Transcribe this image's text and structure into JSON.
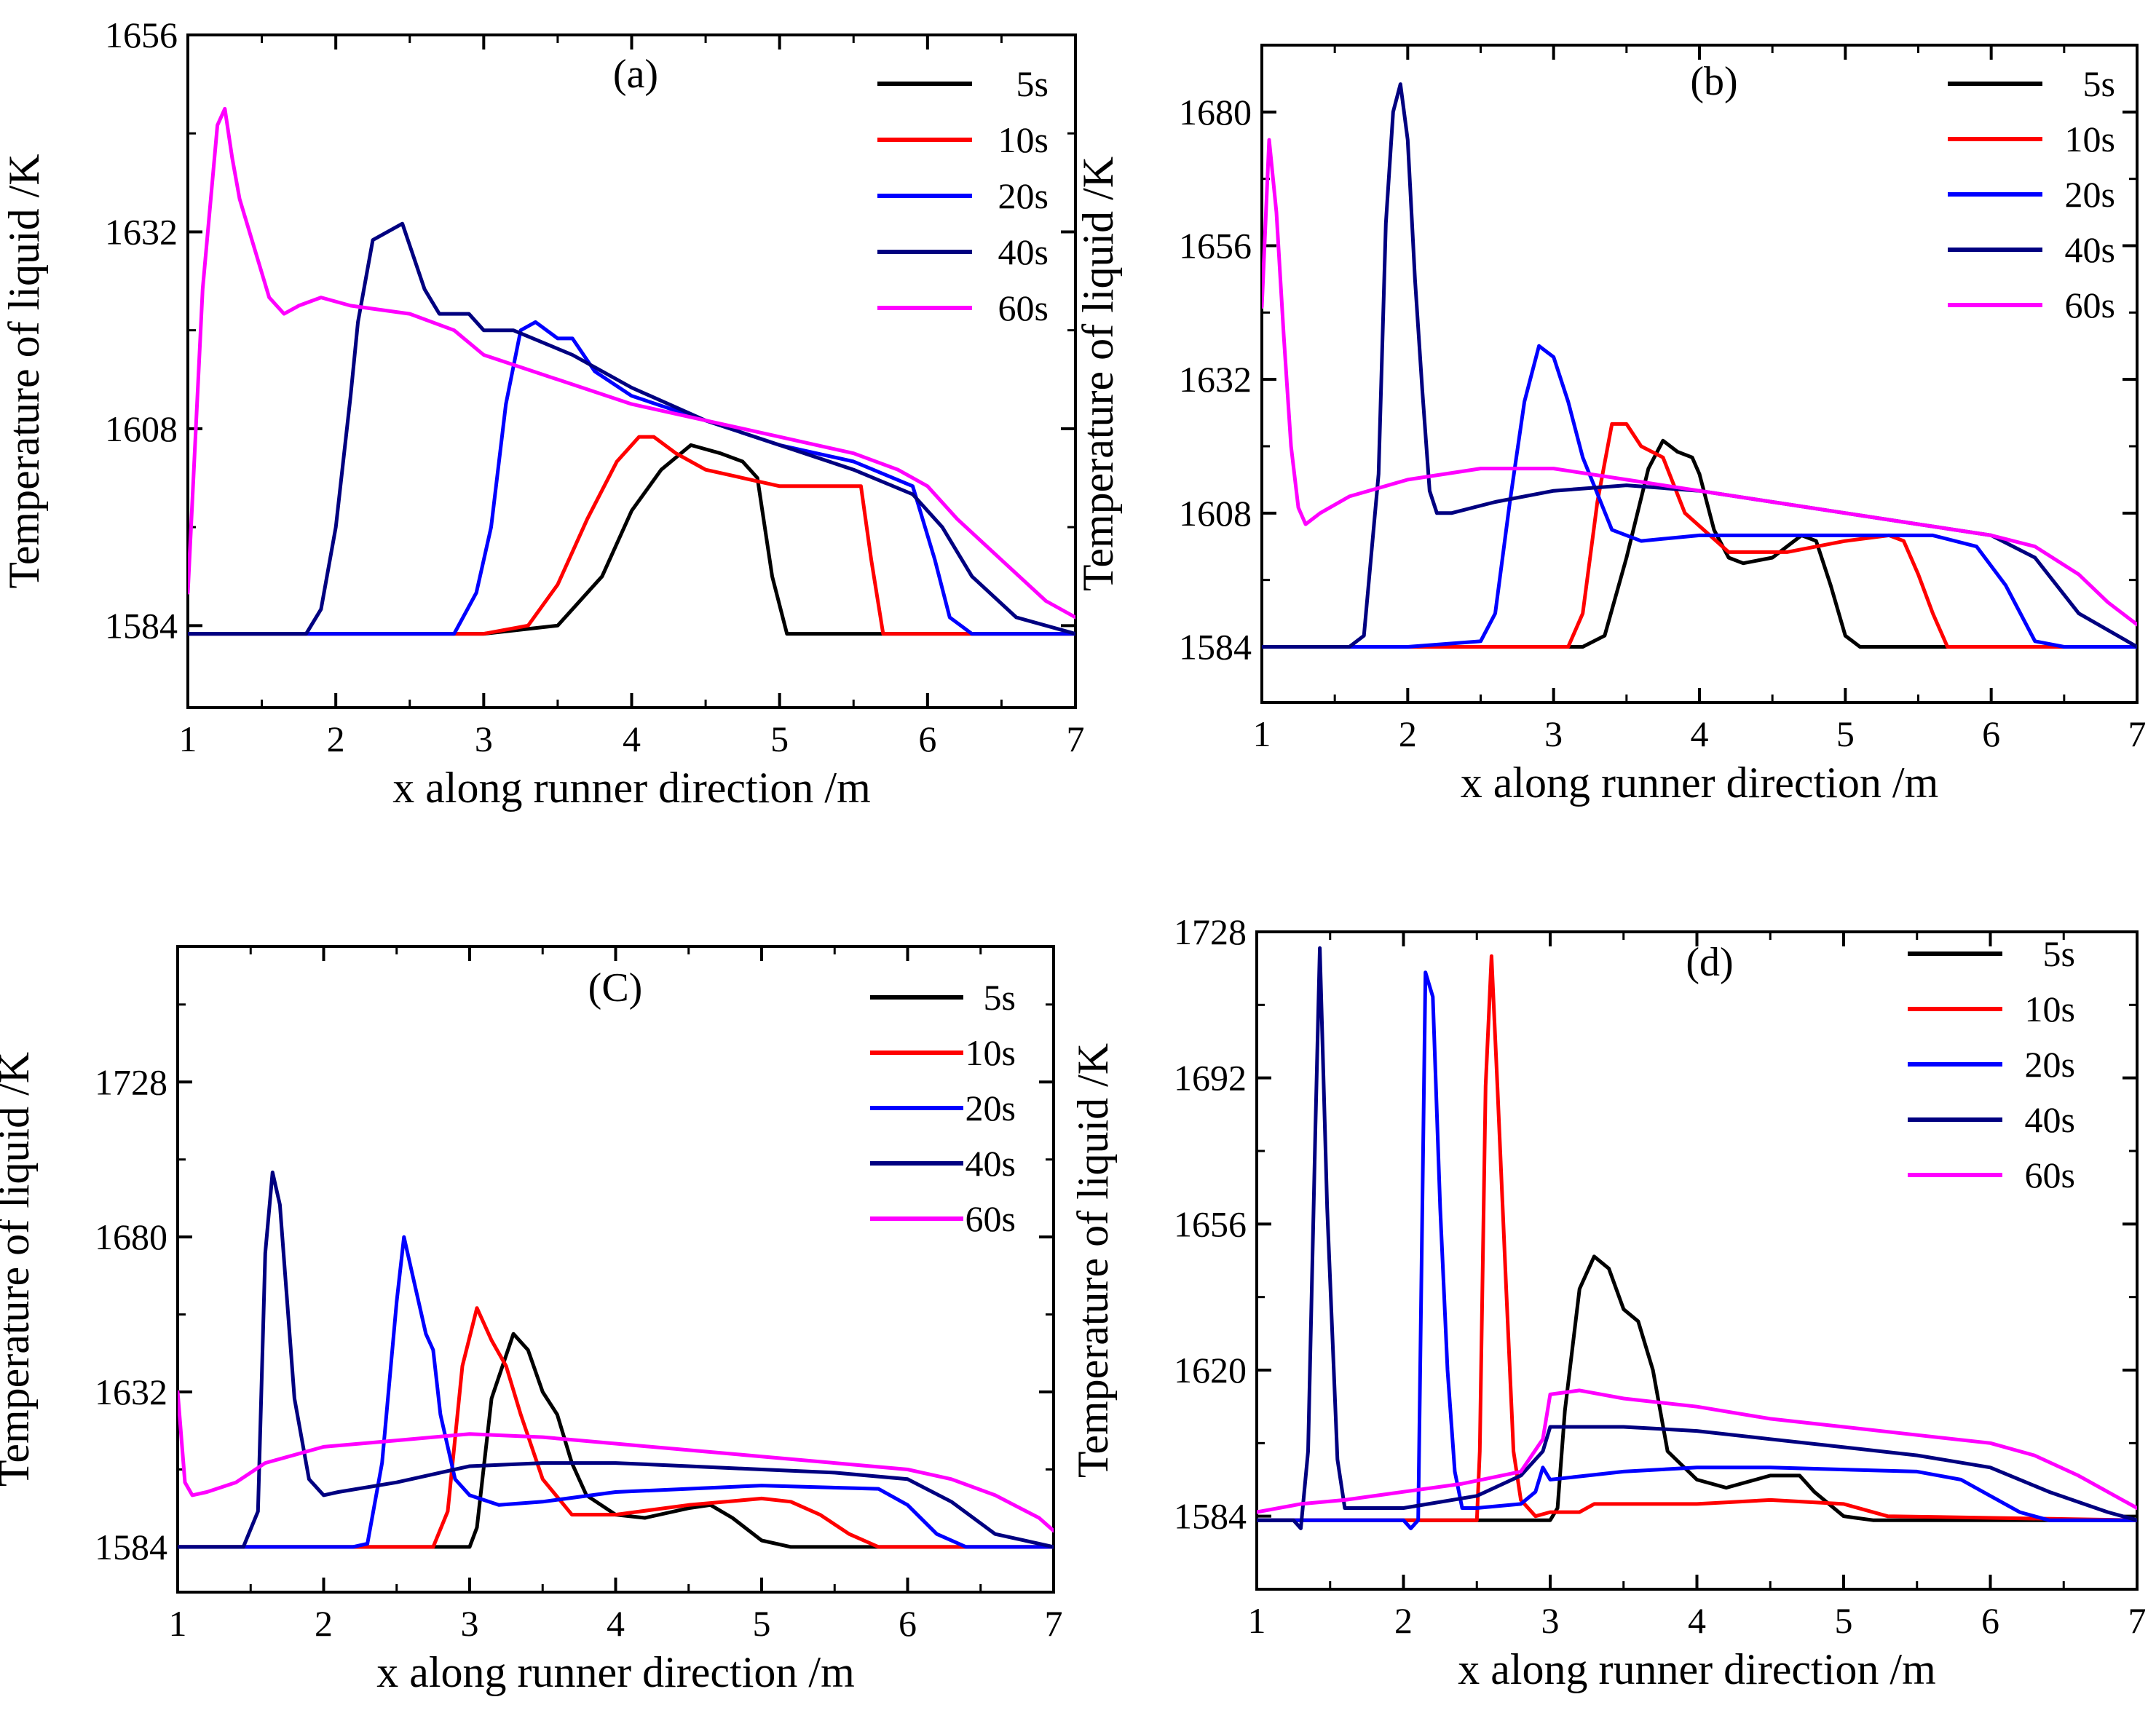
{
  "figure": {
    "background": "#ffffff"
  },
  "chart_data": [
    {
      "type": "line",
      "title": "(a)",
      "xlabel": "x along runner direction /m",
      "ylabel": "Temperature of liquid /K",
      "xlim": [
        1,
        7
      ],
      "ylim": [
        1574,
        1656
      ],
      "xticks": [
        "1",
        "2",
        "3",
        "4",
        "5",
        "6",
        "7"
      ],
      "yticks": [
        "1584",
        "1608",
        "1632",
        "1656"
      ],
      "series": [
        {
          "name": "5s",
          "color": "#000000",
          "x": [
            1,
            2,
            3,
            3.5,
            3.8,
            4.0,
            4.2,
            4.4,
            4.6,
            4.75,
            4.85,
            4.95,
            5.05,
            5.2,
            6,
            7
          ],
          "y": [
            1583,
            1583,
            1583,
            1584,
            1590,
            1598,
            1603,
            1606,
            1605,
            1604,
            1602,
            1590,
            1583,
            1583,
            1583,
            1583
          ]
        },
        {
          "name": "10s",
          "color": "#ff0000",
          "x": [
            1,
            2,
            3,
            3.3,
            3.5,
            3.7,
            3.9,
            4.05,
            4.15,
            4.3,
            4.5,
            5,
            5.4,
            5.55,
            5.62,
            5.7,
            5.8,
            7
          ],
          "y": [
            1583,
            1583,
            1583,
            1584,
            1589,
            1597,
            1604,
            1607,
            1607,
            1605,
            1603,
            1601,
            1601,
            1601,
            1592,
            1583,
            1583,
            1583
          ]
        },
        {
          "name": "20s",
          "color": "#0000ff",
          "x": [
            1,
            2,
            2.8,
            2.95,
            3.05,
            3.15,
            3.25,
            3.35,
            3.5,
            3.6,
            3.75,
            4,
            4.5,
            5,
            5.5,
            5.9,
            6.05,
            6.15,
            6.3,
            6.5,
            7
          ],
          "y": [
            1583,
            1583,
            1583,
            1588,
            1596,
            1611,
            1620,
            1621,
            1619,
            1619,
            1615,
            1612,
            1609,
            1606,
            1604,
            1601,
            1592,
            1585,
            1583,
            1583,
            1583
          ]
        },
        {
          "name": "40s",
          "color": "#000080",
          "x": [
            1,
            1.8,
            1.9,
            2.0,
            2.1,
            2.15,
            2.25,
            2.35,
            2.45,
            2.6,
            2.7,
            2.9,
            3.0,
            3.2,
            3.6,
            4.0,
            4.5,
            5,
            5.5,
            5.9,
            6.1,
            6.3,
            6.6,
            7
          ],
          "y": [
            1583,
            1583,
            1586,
            1596,
            1612,
            1621,
            1631,
            1632,
            1633,
            1625,
            1622,
            1622,
            1620,
            1620,
            1617,
            1613,
            1609,
            1606,
            1603,
            1600,
            1596,
            1590,
            1585,
            1583
          ]
        },
        {
          "name": "60s",
          "color": "#ff00ff",
          "x": [
            1,
            1.1,
            1.2,
            1.25,
            1.3,
            1.35,
            1.45,
            1.55,
            1.65,
            1.75,
            1.9,
            2.1,
            2.5,
            2.8,
            3.0,
            3.5,
            4,
            4.5,
            5,
            5.5,
            5.8,
            6.0,
            6.2,
            6.5,
            6.8,
            7
          ],
          "y": [
            1588,
            1625,
            1645,
            1647,
            1641,
            1636,
            1630,
            1624,
            1622,
            1623,
            1624,
            1623,
            1622,
            1620,
            1617,
            1614,
            1611,
            1609,
            1607,
            1605,
            1603,
            1601,
            1597,
            1592,
            1587,
            1585
          ]
        }
      ]
    },
    {
      "type": "line",
      "title": "(b)",
      "xlabel": "x along runner direction /m",
      "ylabel": "Temperature of liquid /K",
      "xlim": [
        1,
        7
      ],
      "ylim": [
        1574,
        1692
      ],
      "xticks": [
        "1",
        "2",
        "3",
        "4",
        "5",
        "6",
        "7"
      ],
      "yticks": [
        "1584",
        "1608",
        "1632",
        "1656",
        "1680"
      ],
      "series": [
        {
          "name": "5s",
          "color": "#000000",
          "x": [
            1,
            2,
            3.2,
            3.35,
            3.5,
            3.65,
            3.75,
            3.85,
            3.95,
            4.0,
            4.1,
            4.2,
            4.3,
            4.5,
            4.7,
            4.8,
            4.9,
            5.0,
            5.1,
            5.3,
            7
          ],
          "y": [
            1584,
            1584,
            1584,
            1586,
            1600,
            1616,
            1621,
            1619,
            1618,
            1615,
            1605,
            1600,
            1599,
            1600,
            1604,
            1603,
            1595,
            1586,
            1584,
            1584,
            1584
          ]
        },
        {
          "name": "10s",
          "color": "#ff0000",
          "x": [
            1,
            2,
            3.1,
            3.2,
            3.3,
            3.4,
            3.5,
            3.6,
            3.75,
            3.9,
            4.2,
            4.6,
            5.0,
            5.3,
            5.4,
            5.5,
            5.6,
            5.7,
            7
          ],
          "y": [
            1584,
            1584,
            1584,
            1590,
            1610,
            1624,
            1624,
            1620,
            1618,
            1608,
            1601,
            1601,
            1603,
            1604,
            1603,
            1597,
            1590,
            1584,
            1584
          ]
        },
        {
          "name": "20s",
          "color": "#0000ff",
          "x": [
            1,
            2,
            2.5,
            2.6,
            2.7,
            2.8,
            2.9,
            3.0,
            3.1,
            3.2,
            3.4,
            3.6,
            4,
            5,
            5.6,
            5.9,
            6.1,
            6.3,
            6.5,
            7
          ],
          "y": [
            1584,
            1584,
            1585,
            1590,
            1610,
            1628,
            1638,
            1636,
            1628,
            1618,
            1605,
            1603,
            1604,
            1604,
            1604,
            1602,
            1595,
            1585,
            1584,
            1584
          ]
        },
        {
          "name": "40s",
          "color": "#000080",
          "x": [
            1,
            1.6,
            1.7,
            1.8,
            1.85,
            1.9,
            1.95,
            2.0,
            2.05,
            2.1,
            2.15,
            2.2,
            2.3,
            2.6,
            3,
            3.5,
            4,
            4.5,
            5,
            5.5,
            6,
            6.3,
            6.6,
            7
          ],
          "y": [
            1584,
            1584,
            1586,
            1615,
            1660,
            1680,
            1685,
            1675,
            1650,
            1630,
            1612,
            1608,
            1608,
            1610,
            1612,
            1613,
            1612,
            1610,
            1608,
            1606,
            1604,
            1600,
            1590,
            1584
          ]
        },
        {
          "name": "60s",
          "color": "#ff00ff",
          "x": [
            1,
            1.05,
            1.1,
            1.15,
            1.2,
            1.25,
            1.3,
            1.4,
            1.6,
            2,
            2.5,
            3,
            3.5,
            4,
            4.5,
            5,
            5.5,
            6,
            6.3,
            6.6,
            6.8,
            7
          ],
          "y": [
            1645,
            1675,
            1662,
            1640,
            1620,
            1609,
            1606,
            1608,
            1611,
            1614,
            1616,
            1616,
            1614,
            1612,
            1610,
            1608,
            1606,
            1604,
            1602,
            1597,
            1592,
            1588
          ]
        }
      ]
    },
    {
      "type": "line",
      "title": "(C)",
      "xlabel": "x along runner direction /m",
      "ylabel": "Temperature of liquid /K",
      "xlim": [
        1,
        7
      ],
      "ylim": [
        1570,
        1770
      ],
      "xticks": [
        "1",
        "2",
        "3",
        "4",
        "5",
        "6",
        "7"
      ],
      "yticks": [
        "1584",
        "1632",
        "1680",
        "1728"
      ],
      "series": [
        {
          "name": "5s",
          "color": "#000000",
          "x": [
            1,
            2,
            3.0,
            3.05,
            3.15,
            3.3,
            3.4,
            3.5,
            3.6,
            3.7,
            3.8,
            4,
            4.2,
            4.5,
            4.65,
            4.8,
            5.0,
            5.2,
            7
          ],
          "y": [
            1584,
            1584,
            1584,
            1590,
            1630,
            1650,
            1645,
            1632,
            1625,
            1610,
            1600,
            1594,
            1593,
            1596,
            1597,
            1593,
            1586,
            1584,
            1584
          ]
        },
        {
          "name": "10s",
          "color": "#ff0000",
          "x": [
            1,
            2.5,
            2.75,
            2.85,
            2.95,
            3.05,
            3.15,
            3.25,
            3.35,
            3.5,
            3.7,
            4,
            4.5,
            5.0,
            5.2,
            5.4,
            5.6,
            5.8,
            7
          ],
          "y": [
            1584,
            1584,
            1584,
            1595,
            1640,
            1658,
            1648,
            1640,
            1625,
            1605,
            1594,
            1594,
            1597,
            1599,
            1598,
            1594,
            1588,
            1584,
            1584
          ]
        },
        {
          "name": "20s",
          "color": "#0000ff",
          "x": [
            1,
            2.2,
            2.3,
            2.4,
            2.5,
            2.55,
            2.6,
            2.7,
            2.75,
            2.8,
            2.9,
            3.0,
            3.2,
            3.5,
            4,
            5,
            5.8,
            6.0,
            6.2,
            6.4,
            7
          ],
          "y": [
            1584,
            1584,
            1585,
            1610,
            1660,
            1680,
            1670,
            1650,
            1645,
            1625,
            1605,
            1600,
            1597,
            1598,
            1601,
            1603,
            1602,
            1597,
            1588,
            1584,
            1584
          ]
        },
        {
          "name": "40s",
          "color": "#000080",
          "x": [
            1,
            1.45,
            1.55,
            1.6,
            1.65,
            1.7,
            1.75,
            1.8,
            1.9,
            2.0,
            2.1,
            2.5,
            3,
            3.5,
            4,
            4.5,
            5,
            5.5,
            6,
            6.3,
            6.6,
            7
          ],
          "y": [
            1584,
            1584,
            1595,
            1675,
            1700,
            1690,
            1660,
            1630,
            1605,
            1600,
            1601,
            1604,
            1609,
            1610,
            1610,
            1609,
            1608,
            1607,
            1605,
            1598,
            1588,
            1584
          ]
        },
        {
          "name": "60s",
          "color": "#ff00ff",
          "x": [
            1,
            1.05,
            1.1,
            1.2,
            1.4,
            1.6,
            2,
            2.5,
            3,
            3.5,
            4,
            4.5,
            5,
            5.5,
            6,
            6.3,
            6.6,
            6.9,
            7
          ],
          "y": [
            1632,
            1604,
            1600,
            1601,
            1604,
            1610,
            1615,
            1617,
            1619,
            1618,
            1616,
            1614,
            1612,
            1610,
            1608,
            1605,
            1600,
            1593,
            1589
          ]
        }
      ]
    },
    {
      "type": "line",
      "title": "(d)",
      "xlabel": "x along runner direction /m",
      "ylabel": "Temperature of liquid /K",
      "xlim": [
        1,
        7
      ],
      "ylim": [
        1566,
        1728
      ],
      "xticks": [
        "1",
        "2",
        "3",
        "4",
        "5",
        "6",
        "7"
      ],
      "yticks": [
        "1584",
        "1620",
        "1656",
        "1692",
        "1728"
      ],
      "series": [
        {
          "name": "5s",
          "color": "#000000",
          "x": [
            1,
            2,
            3.0,
            3.05,
            3.1,
            3.2,
            3.3,
            3.4,
            3.5,
            3.6,
            3.7,
            3.8,
            4,
            4.2,
            4.5,
            4.7,
            4.8,
            5.0,
            5.2,
            7
          ],
          "y": [
            1583,
            1583,
            1583,
            1586,
            1610,
            1640,
            1648,
            1645,
            1635,
            1632,
            1620,
            1600,
            1593,
            1591,
            1594,
            1594,
            1590,
            1584,
            1583,
            1583
          ]
        },
        {
          "name": "10s",
          "color": "#ff0000",
          "x": [
            1,
            2.5,
            2.52,
            2.56,
            2.6,
            2.64,
            2.7,
            2.75,
            2.8,
            2.9,
            3.0,
            3.2,
            3.3,
            3.5,
            4,
            4.5,
            5.0,
            5.3,
            7
          ],
          "y": [
            1583,
            1583,
            1600,
            1690,
            1722,
            1690,
            1640,
            1600,
            1588,
            1584,
            1585,
            1585,
            1587,
            1587,
            1587,
            1588,
            1587,
            1584,
            1583
          ]
        },
        {
          "name": "20s",
          "color": "#0000ff",
          "x": [
            1,
            2.0,
            2.05,
            2.1,
            2.15,
            2.2,
            2.25,
            2.3,
            2.35,
            2.4,
            2.5,
            2.8,
            2.9,
            2.95,
            3.0,
            3.5,
            4,
            4.5,
            5.5,
            5.8,
            6.0,
            6.2,
            6.4,
            7
          ],
          "y": [
            1583,
            1583,
            1581,
            1583,
            1718,
            1712,
            1660,
            1620,
            1595,
            1586,
            1586,
            1587,
            1590,
            1596,
            1593,
            1595,
            1596,
            1596,
            1595,
            1593,
            1589,
            1585,
            1583,
            1583
          ]
        },
        {
          "name": "40s",
          "color": "#000080",
          "x": [
            1,
            1.25,
            1.3,
            1.35,
            1.4,
            1.43,
            1.48,
            1.55,
            1.6,
            2,
            2.5,
            2.8,
            2.95,
            3.0,
            3.2,
            3.5,
            4,
            4.5,
            5,
            5.5,
            6.0,
            6.4,
            6.8,
            7
          ],
          "y": [
            1583,
            1583,
            1581,
            1600,
            1680,
            1724,
            1660,
            1598,
            1586,
            1586,
            1589,
            1594,
            1600,
            1606,
            1606,
            1606,
            1605,
            1603,
            1601,
            1599,
            1596,
            1590,
            1585,
            1583
          ]
        },
        {
          "name": "60s",
          "color": "#ff00ff",
          "x": [
            1,
            1.3,
            1.6,
            2,
            2.4,
            2.8,
            2.95,
            3.0,
            3.2,
            3.5,
            4,
            4.5,
            5,
            5.5,
            6,
            6.3,
            6.6,
            6.9,
            7
          ],
          "y": [
            1585,
            1587,
            1588,
            1590,
            1592,
            1595,
            1603,
            1614,
            1615,
            1613,
            1611,
            1608,
            1606,
            1604,
            1602,
            1599,
            1594,
            1588,
            1586
          ]
        }
      ]
    }
  ]
}
